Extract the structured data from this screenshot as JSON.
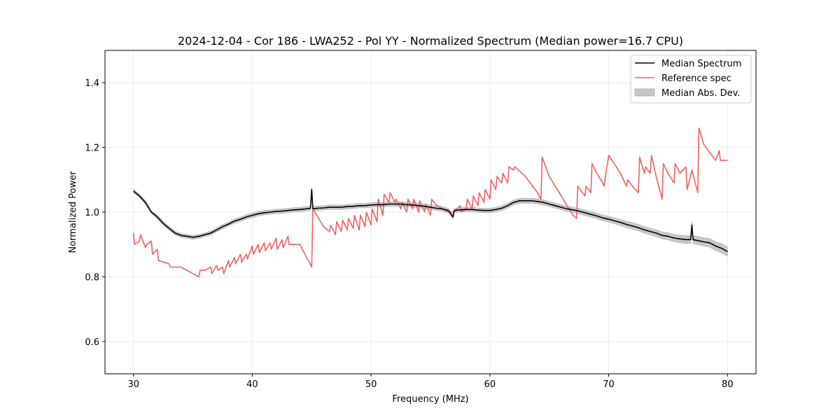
{
  "chart_data": {
    "type": "line",
    "title": "2024-12-04 - Cor 186 - LWA252 - Pol YY - Normalized Spectrum (Median power=16.7 CPU)",
    "xlabel": "Frequency (MHz)",
    "ylabel": "Normalized Power",
    "xlim": [
      27.6,
      82.4
    ],
    "ylim": [
      0.5,
      1.5
    ],
    "xticks": [
      30,
      40,
      50,
      60,
      70,
      80
    ],
    "yticks": [
      0.6,
      0.8,
      1.0,
      1.2,
      1.4
    ],
    "xtick_labels": [
      "30",
      "40",
      "50",
      "60",
      "70",
      "80"
    ],
    "ytick_labels": [
      "0.6",
      "0.8",
      "1.0",
      "1.2",
      "1.4"
    ],
    "grid": true,
    "legend_position": "top-right",
    "legend": [
      {
        "label": "Median Spectrum",
        "kind": "line",
        "color": "#000000"
      },
      {
        "label": "Reference spec",
        "kind": "line",
        "color": "#f06060"
      },
      {
        "label": "Median Abs. Dev.",
        "kind": "band",
        "color": "#c8c8c8"
      }
    ],
    "series": [
      {
        "name": "Median Spectrum",
        "color": "#000000",
        "x": [
          30.0,
          30.5,
          31.0,
          31.5,
          32.0,
          32.5,
          33.0,
          33.5,
          34.0,
          34.5,
          35.0,
          35.5,
          36.0,
          36.5,
          37.0,
          37.5,
          38.0,
          38.5,
          39.0,
          39.5,
          40.0,
          40.5,
          41.0,
          41.5,
          42.0,
          42.5,
          43.0,
          43.5,
          44.0,
          44.5,
          44.9,
          45.0,
          45.1,
          45.5,
          46.0,
          46.5,
          47.0,
          47.5,
          48.0,
          48.5,
          49.0,
          49.5,
          50.0,
          50.5,
          51.0,
          51.5,
          52.0,
          52.5,
          53.0,
          53.5,
          54.0,
          54.5,
          55.0,
          55.5,
          56.0,
          56.5,
          56.9,
          57.0,
          57.5,
          58.0,
          58.5,
          59.0,
          59.5,
          60.0,
          60.5,
          61.0,
          61.5,
          62.0,
          62.5,
          63.0,
          63.5,
          64.0,
          64.5,
          65.0,
          65.5,
          66.0,
          66.5,
          67.0,
          67.5,
          68.0,
          68.5,
          69.0,
          69.5,
          70.0,
          70.5,
          71.0,
          71.5,
          72.0,
          72.5,
          73.0,
          73.5,
          74.0,
          74.5,
          75.0,
          75.5,
          76.0,
          76.5,
          76.9,
          77.0,
          77.1,
          77.5,
          78.0,
          78.5,
          79.0,
          79.5,
          80.0
        ],
        "y": [
          1.065,
          1.05,
          1.03,
          1.0,
          0.985,
          0.965,
          0.95,
          0.935,
          0.928,
          0.925,
          0.922,
          0.925,
          0.93,
          0.935,
          0.945,
          0.955,
          0.963,
          0.972,
          0.978,
          0.985,
          0.99,
          0.995,
          0.998,
          1.0,
          1.002,
          1.003,
          1.005,
          1.007,
          1.008,
          1.01,
          1.012,
          1.07,
          1.01,
          1.012,
          1.013,
          1.015,
          1.015,
          1.015,
          1.017,
          1.018,
          1.02,
          1.02,
          1.022,
          1.023,
          1.023,
          1.025,
          1.025,
          1.025,
          1.023,
          1.022,
          1.02,
          1.018,
          1.015,
          1.012,
          1.01,
          1.005,
          0.985,
          1.005,
          1.007,
          1.008,
          1.008,
          1.006,
          1.005,
          1.005,
          1.008,
          1.012,
          1.02,
          1.03,
          1.035,
          1.035,
          1.035,
          1.033,
          1.03,
          1.025,
          1.02,
          1.015,
          1.01,
          1.007,
          1.003,
          0.998,
          0.993,
          0.988,
          0.982,
          0.978,
          0.973,
          0.968,
          0.962,
          0.957,
          0.952,
          0.945,
          0.94,
          0.935,
          0.928,
          0.925,
          0.92,
          0.917,
          0.915,
          0.915,
          0.96,
          0.915,
          0.912,
          0.908,
          0.905,
          0.895,
          0.888,
          0.878
        ]
      },
      {
        "name": "Reference spec",
        "color": "#f06060",
        "x": [
          30.0,
          30.1,
          30.5,
          30.6,
          31.0,
          31.1,
          31.5,
          31.6,
          32.0,
          32.1,
          33.0,
          33.1,
          34.0,
          35.0,
          35.5,
          35.6,
          36.0,
          36.5,
          36.6,
          37.0,
          37.1,
          37.5,
          37.6,
          38.0,
          38.1,
          38.5,
          38.6,
          39.0,
          39.1,
          39.5,
          39.6,
          40.0,
          40.1,
          40.5,
          40.6,
          41.0,
          41.1,
          41.5,
          41.6,
          42.0,
          42.1,
          42.5,
          42.6,
          43.0,
          43.1,
          44.0,
          45.0,
          45.1,
          45.5,
          46.0,
          46.5,
          46.6,
          47.0,
          47.1,
          47.5,
          47.6,
          48.0,
          48.1,
          48.5,
          48.6,
          49.0,
          49.1,
          49.5,
          49.6,
          50.0,
          50.1,
          50.5,
          50.6,
          51.0,
          51.1,
          51.5,
          51.6,
          52.0,
          52.1,
          52.5,
          52.6,
          53.0,
          53.1,
          53.5,
          53.6,
          54.0,
          54.1,
          54.5,
          54.6,
          55.0,
          55.1,
          55.5,
          55.6,
          56.0,
          56.5,
          57.0,
          57.5,
          57.6,
          58.0,
          58.1,
          58.5,
          58.6,
          59.0,
          59.1,
          59.5,
          59.6,
          60.0,
          60.1,
          60.5,
          60.6,
          61.0,
          61.1,
          61.5,
          61.6,
          62.0,
          62.1,
          63.0,
          64.0,
          64.3,
          64.4,
          65.0,
          66.0,
          67.0,
          67.3,
          67.4,
          68.0,
          68.1,
          68.5,
          68.6,
          69.0,
          69.5,
          69.6,
          70.0,
          70.1,
          71.0,
          71.5,
          71.6,
          72.0,
          72.5,
          72.6,
          73.0,
          73.1,
          73.5,
          73.6,
          74.0,
          74.5,
          74.6,
          75.0,
          75.5,
          75.6,
          76.0,
          76.5,
          76.6,
          77.0,
          77.5,
          77.6,
          78.0,
          79.0,
          79.3,
          79.4,
          80.0
        ],
        "y": [
          0.935,
          0.9,
          0.91,
          0.93,
          0.89,
          0.9,
          0.91,
          0.87,
          0.885,
          0.85,
          0.84,
          0.83,
          0.83,
          0.81,
          0.8,
          0.82,
          0.82,
          0.83,
          0.81,
          0.835,
          0.82,
          0.83,
          0.81,
          0.85,
          0.83,
          0.86,
          0.84,
          0.87,
          0.845,
          0.87,
          0.855,
          0.895,
          0.87,
          0.9,
          0.875,
          0.905,
          0.88,
          0.905,
          0.885,
          0.92,
          0.885,
          0.915,
          0.89,
          0.925,
          0.9,
          0.9,
          0.83,
          1.01,
          0.985,
          0.955,
          0.94,
          0.96,
          0.93,
          0.97,
          0.94,
          0.975,
          0.945,
          0.98,
          0.95,
          0.99,
          0.945,
          0.99,
          0.955,
          1.0,
          0.96,
          1.01,
          0.97,
          1.04,
          0.99,
          1.055,
          1.03,
          1.06,
          1.03,
          1.04,
          1.01,
          1.03,
          1.0,
          1.04,
          1.01,
          1.04,
          1.0,
          1.035,
          1.0,
          1.025,
          0.99,
          1.04,
          1.02,
          1.02,
          1.01,
          1.0,
          1.0,
          1.02,
          1.0,
          1.01,
          1.04,
          1.01,
          1.05,
          1.02,
          1.06,
          1.03,
          1.07,
          1.04,
          1.1,
          1.07,
          1.11,
          1.09,
          1.12,
          1.09,
          1.14,
          1.13,
          1.14,
          1.11,
          1.06,
          1.04,
          1.17,
          1.11,
          1.05,
          0.99,
          0.98,
          1.08,
          1.05,
          1.08,
          1.06,
          1.15,
          1.12,
          1.09,
          1.08,
          1.175,
          1.17,
          1.12,
          1.08,
          1.1,
          1.08,
          1.06,
          1.17,
          1.12,
          1.14,
          1.12,
          1.175,
          1.11,
          1.04,
          1.15,
          1.12,
          1.09,
          1.15,
          1.12,
          1.14,
          1.07,
          1.13,
          1.06,
          1.26,
          1.21,
          1.16,
          1.19,
          1.16,
          1.16
        ]
      }
    ],
    "bands": [
      {
        "name": "Median Abs. Dev.",
        "color": "#c8c8c8",
        "note": "shaded band around the Median Spectrum",
        "x": [
          30,
          33,
          36,
          40,
          45,
          50,
          55,
          60,
          63,
          66,
          70,
          72,
          75,
          78,
          80
        ],
        "half_width": [
          0.005,
          0.006,
          0.006,
          0.007,
          0.007,
          0.007,
          0.007,
          0.007,
          0.008,
          0.008,
          0.009,
          0.01,
          0.011,
          0.013,
          0.015
        ]
      }
    ]
  }
}
